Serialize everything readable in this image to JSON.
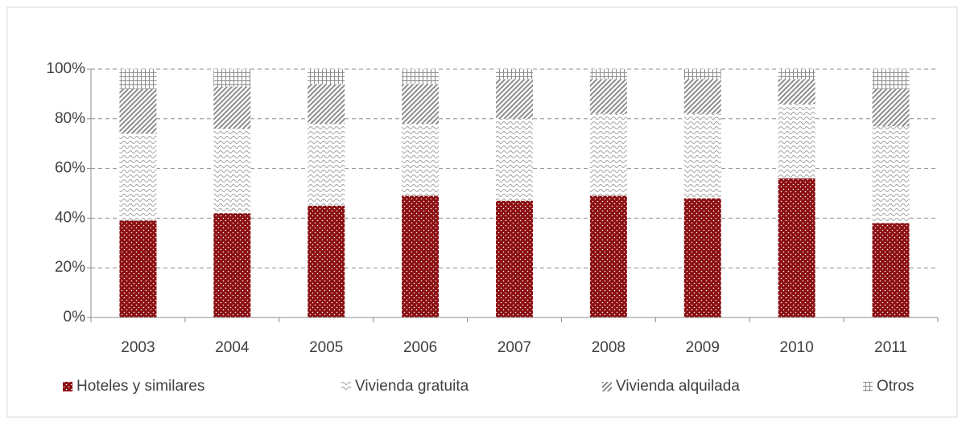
{
  "chart_data": {
    "type": "stacked_bar",
    "categories": [
      "2003",
      "2004",
      "2005",
      "2006",
      "2007",
      "2008",
      "2009",
      "2010",
      "2011"
    ],
    "series": [
      {
        "name": "Hoteles y similares",
        "color": "#8b0f12",
        "values": [
          39,
          42,
          45,
          49,
          47,
          49,
          48,
          56,
          38
        ]
      },
      {
        "name": "Vivienda gratuita",
        "color": "#a0a0a0",
        "values": [
          35,
          34,
          33,
          29,
          33,
          33,
          34,
          30,
          39
        ]
      },
      {
        "name": "Vivienda alquilada",
        "color": "#8c8c8c",
        "values": [
          18,
          17,
          16,
          16,
          16,
          14,
          14,
          10,
          15
        ]
      },
      {
        "name": "Otros",
        "color": "#8c8c8c",
        "values": [
          8,
          7,
          6,
          6,
          4,
          4,
          4,
          4,
          8
        ]
      }
    ],
    "ylim": [
      0,
      100
    ],
    "yticks": [
      {
        "value": 0,
        "label": "0%"
      },
      {
        "value": 20,
        "label": "20%"
      },
      {
        "value": 40,
        "label": "40%"
      },
      {
        "value": 60,
        "label": "60%"
      },
      {
        "value": 80,
        "label": "80%"
      },
      {
        "value": 100,
        "label": "100%"
      }
    ],
    "grid": true,
    "legend": "bottom"
  }
}
